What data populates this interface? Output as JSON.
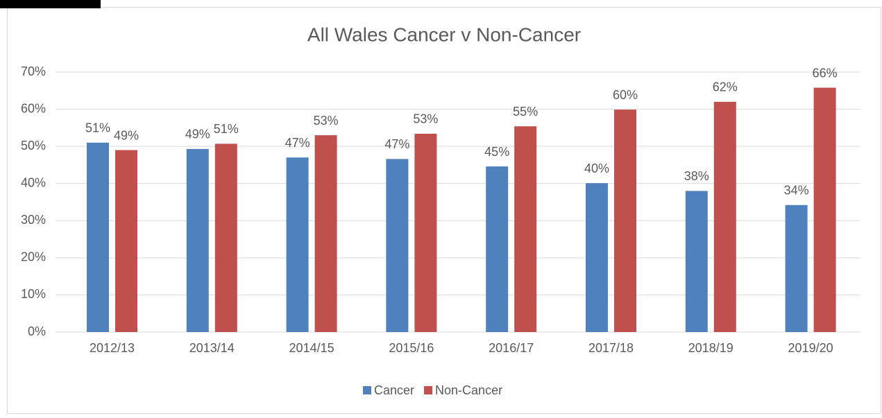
{
  "chart_data": {
    "type": "bar",
    "title": "All Wales Cancer v Non-Cancer",
    "categories": [
      "2012/13",
      "2013/14",
      "2014/15",
      "2015/16",
      "2016/17",
      "2017/18",
      "2018/19",
      "2019/20"
    ],
    "series": [
      {
        "name": "Cancer",
        "color": "#4f81bd",
        "values": [
          51,
          49.3,
          47,
          46.6,
          44.6,
          40.1,
          38,
          34.2
        ],
        "value_labels": [
          "51%",
          "49%",
          "47%",
          "47%",
          "45%",
          "40%",
          "38%",
          "34%"
        ]
      },
      {
        "name": "Non-Cancer",
        "color": "#c0504d",
        "values": [
          49,
          50.7,
          53,
          53.4,
          55.4,
          59.9,
          62,
          65.8
        ],
        "value_labels": [
          "49%",
          "51%",
          "53%",
          "53%",
          "55%",
          "60%",
          "62%",
          "66%"
        ]
      }
    ],
    "ylim": [
      0,
      70
    ],
    "yticks": [
      {
        "value": 0,
        "label": "0%"
      },
      {
        "value": 10,
        "label": "10%"
      },
      {
        "value": 20,
        "label": "20%"
      },
      {
        "value": 30,
        "label": "30%"
      },
      {
        "value": 40,
        "label": "40%"
      },
      {
        "value": 50,
        "label": "50%"
      },
      {
        "value": 60,
        "label": "60%"
      },
      {
        "value": 70,
        "label": "70%"
      }
    ],
    "grid": true,
    "legend": "bottom"
  }
}
